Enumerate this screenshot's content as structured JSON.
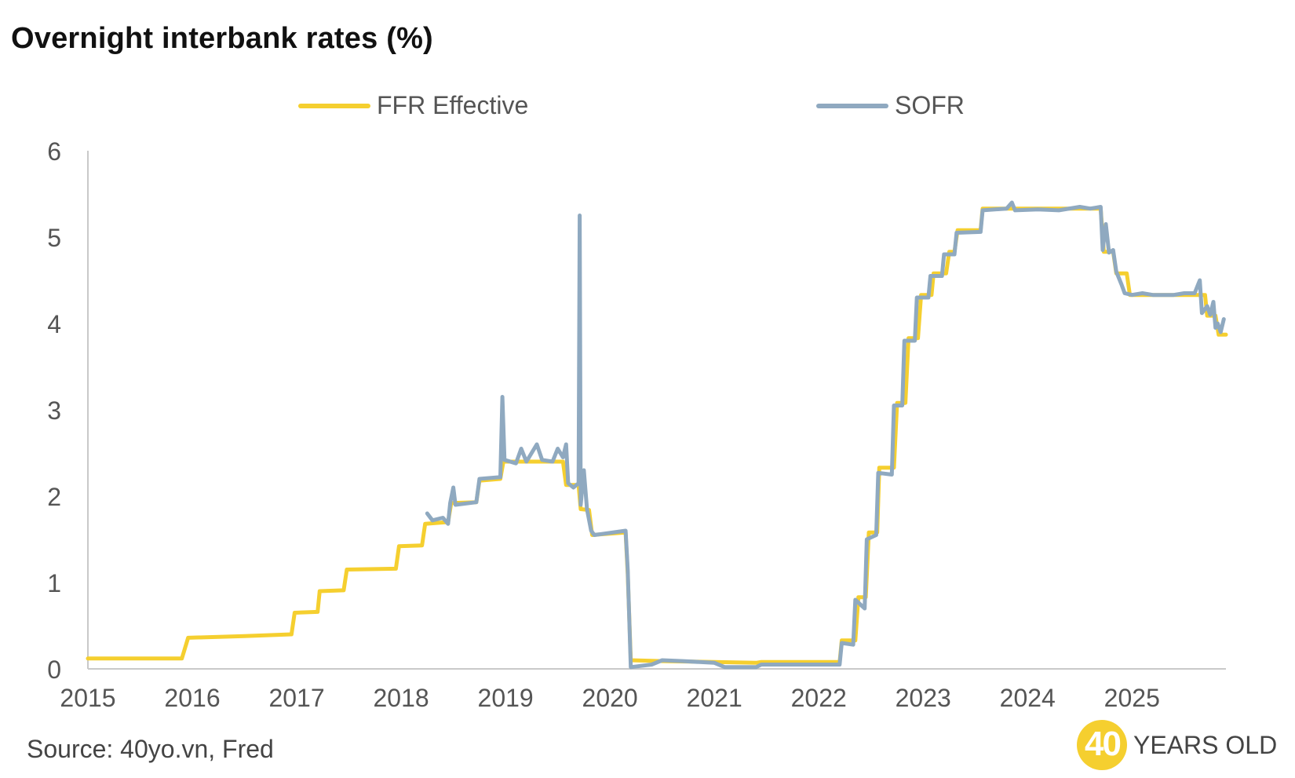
{
  "chart_data": {
    "type": "line",
    "title": "Overnight interbank rates (%)",
    "xlabel": "",
    "ylabel": "",
    "x_range": [
      2015,
      2025.9
    ],
    "ylim": [
      0,
      6
    ],
    "y_ticks": [
      "0",
      "1",
      "2",
      "3",
      "4",
      "5",
      "6"
    ],
    "x_ticks": [
      "2015",
      "2016",
      "2017",
      "2018",
      "2019",
      "2020",
      "2021",
      "2022",
      "2023",
      "2024",
      "2025"
    ],
    "legend": "top",
    "series": [
      {
        "name": "FFR Effective",
        "color": "#f5cf2f",
        "points": [
          [
            2015.0,
            0.12
          ],
          [
            2015.9,
            0.12
          ],
          [
            2015.96,
            0.36
          ],
          [
            2016.5,
            0.38
          ],
          [
            2016.95,
            0.4
          ],
          [
            2016.98,
            0.65
          ],
          [
            2017.2,
            0.66
          ],
          [
            2017.22,
            0.9
          ],
          [
            2017.45,
            0.91
          ],
          [
            2017.48,
            1.15
          ],
          [
            2017.95,
            1.16
          ],
          [
            2017.98,
            1.42
          ],
          [
            2018.2,
            1.43
          ],
          [
            2018.23,
            1.68
          ],
          [
            2018.45,
            1.7
          ],
          [
            2018.48,
            1.92
          ],
          [
            2018.72,
            1.93
          ],
          [
            2018.75,
            2.18
          ],
          [
            2018.95,
            2.2
          ],
          [
            2018.98,
            2.4
          ],
          [
            2019.55,
            2.4
          ],
          [
            2019.58,
            2.13
          ],
          [
            2019.7,
            2.13
          ],
          [
            2019.72,
            1.85
          ],
          [
            2019.8,
            1.84
          ],
          [
            2019.83,
            1.55
          ],
          [
            2020.15,
            1.58
          ],
          [
            2020.17,
            1.1
          ],
          [
            2020.2,
            0.1
          ],
          [
            2020.5,
            0.09
          ],
          [
            2021.0,
            0.08
          ],
          [
            2021.4,
            0.07
          ],
          [
            2021.45,
            0.08
          ],
          [
            2022.0,
            0.08
          ],
          [
            2022.2,
            0.08
          ],
          [
            2022.22,
            0.33
          ],
          [
            2022.35,
            0.33
          ],
          [
            2022.38,
            0.83
          ],
          [
            2022.45,
            0.83
          ],
          [
            2022.48,
            1.58
          ],
          [
            2022.56,
            1.58
          ],
          [
            2022.58,
            2.33
          ],
          [
            2022.72,
            2.33
          ],
          [
            2022.75,
            3.08
          ],
          [
            2022.83,
            3.08
          ],
          [
            2022.86,
            3.83
          ],
          [
            2022.95,
            3.83
          ],
          [
            2022.98,
            4.33
          ],
          [
            2023.08,
            4.33
          ],
          [
            2023.1,
            4.58
          ],
          [
            2023.22,
            4.58
          ],
          [
            2023.25,
            4.83
          ],
          [
            2023.3,
            4.83
          ],
          [
            2023.33,
            5.08
          ],
          [
            2023.55,
            5.08
          ],
          [
            2023.57,
            5.33
          ],
          [
            2024.7,
            5.33
          ],
          [
            2024.73,
            4.83
          ],
          [
            2024.82,
            4.83
          ],
          [
            2024.85,
            4.58
          ],
          [
            2024.95,
            4.58
          ],
          [
            2024.98,
            4.33
          ],
          [
            2025.7,
            4.33
          ],
          [
            2025.72,
            4.09
          ],
          [
            2025.8,
            4.09
          ],
          [
            2025.83,
            3.87
          ],
          [
            2025.9,
            3.87
          ]
        ]
      },
      {
        "name": "SOFR",
        "color": "#8fa9c0",
        "points": [
          [
            2018.25,
            1.8
          ],
          [
            2018.3,
            1.72
          ],
          [
            2018.4,
            1.75
          ],
          [
            2018.45,
            1.68
          ],
          [
            2018.47,
            1.92
          ],
          [
            2018.5,
            2.1
          ],
          [
            2018.52,
            1.9
          ],
          [
            2018.72,
            1.93
          ],
          [
            2018.75,
            2.2
          ],
          [
            2018.95,
            2.22
          ],
          [
            2018.97,
            3.15
          ],
          [
            2018.99,
            2.42
          ],
          [
            2019.1,
            2.38
          ],
          [
            2019.15,
            2.55
          ],
          [
            2019.2,
            2.4
          ],
          [
            2019.3,
            2.6
          ],
          [
            2019.35,
            2.42
          ],
          [
            2019.45,
            2.4
          ],
          [
            2019.5,
            2.55
          ],
          [
            2019.55,
            2.45
          ],
          [
            2019.58,
            2.6
          ],
          [
            2019.6,
            2.15
          ],
          [
            2019.65,
            2.1
          ],
          [
            2019.7,
            2.15
          ],
          [
            2019.71,
            5.25
          ],
          [
            2019.72,
            1.9
          ],
          [
            2019.75,
            2.3
          ],
          [
            2019.78,
            1.85
          ],
          [
            2019.82,
            1.6
          ],
          [
            2019.85,
            1.55
          ],
          [
            2020.15,
            1.6
          ],
          [
            2020.17,
            1.15
          ],
          [
            2020.2,
            0.02
          ],
          [
            2020.4,
            0.05
          ],
          [
            2020.5,
            0.1
          ],
          [
            2020.7,
            0.09
          ],
          [
            2021.0,
            0.07
          ],
          [
            2021.1,
            0.02
          ],
          [
            2021.4,
            0.02
          ],
          [
            2021.45,
            0.05
          ],
          [
            2022.0,
            0.05
          ],
          [
            2022.2,
            0.05
          ],
          [
            2022.22,
            0.3
          ],
          [
            2022.33,
            0.28
          ],
          [
            2022.35,
            0.8
          ],
          [
            2022.44,
            0.7
          ],
          [
            2022.46,
            1.5
          ],
          [
            2022.55,
            1.55
          ],
          [
            2022.57,
            2.27
          ],
          [
            2022.7,
            2.25
          ],
          [
            2022.72,
            3.05
          ],
          [
            2022.8,
            3.05
          ],
          [
            2022.82,
            3.8
          ],
          [
            2022.92,
            3.8
          ],
          [
            2022.94,
            4.3
          ],
          [
            2023.05,
            4.3
          ],
          [
            2023.07,
            4.55
          ],
          [
            2023.18,
            4.55
          ],
          [
            2023.2,
            4.8
          ],
          [
            2023.3,
            4.8
          ],
          [
            2023.32,
            5.05
          ],
          [
            2023.55,
            5.06
          ],
          [
            2023.57,
            5.31
          ],
          [
            2023.8,
            5.33
          ],
          [
            2023.85,
            5.4
          ],
          [
            2023.88,
            5.31
          ],
          [
            2024.1,
            5.32
          ],
          [
            2024.3,
            5.31
          ],
          [
            2024.5,
            5.35
          ],
          [
            2024.6,
            5.33
          ],
          [
            2024.7,
            5.35
          ],
          [
            2024.72,
            4.85
          ],
          [
            2024.75,
            5.15
          ],
          [
            2024.78,
            4.82
          ],
          [
            2024.82,
            4.85
          ],
          [
            2024.85,
            4.6
          ],
          [
            2024.9,
            4.45
          ],
          [
            2024.93,
            4.35
          ],
          [
            2025.0,
            4.33
          ],
          [
            2025.1,
            4.35
          ],
          [
            2025.2,
            4.33
          ],
          [
            2025.4,
            4.33
          ],
          [
            2025.5,
            4.35
          ],
          [
            2025.6,
            4.35
          ],
          [
            2025.65,
            4.5
          ],
          [
            2025.67,
            4.12
          ],
          [
            2025.72,
            4.2
          ],
          [
            2025.75,
            4.1
          ],
          [
            2025.78,
            4.25
          ],
          [
            2025.8,
            3.95
          ],
          [
            2025.82,
            4.0
          ],
          [
            2025.85,
            3.9
          ],
          [
            2025.88,
            4.05
          ]
        ]
      }
    ]
  },
  "source": "Source: 40yo.vn, Fred",
  "logo": {
    "number": "40",
    "text": "YEARS OLD",
    "badge_color": "#f5cf2f"
  },
  "colors": {
    "axis": "#c9c9c9",
    "text": "#555555",
    "title": "#111111"
  }
}
